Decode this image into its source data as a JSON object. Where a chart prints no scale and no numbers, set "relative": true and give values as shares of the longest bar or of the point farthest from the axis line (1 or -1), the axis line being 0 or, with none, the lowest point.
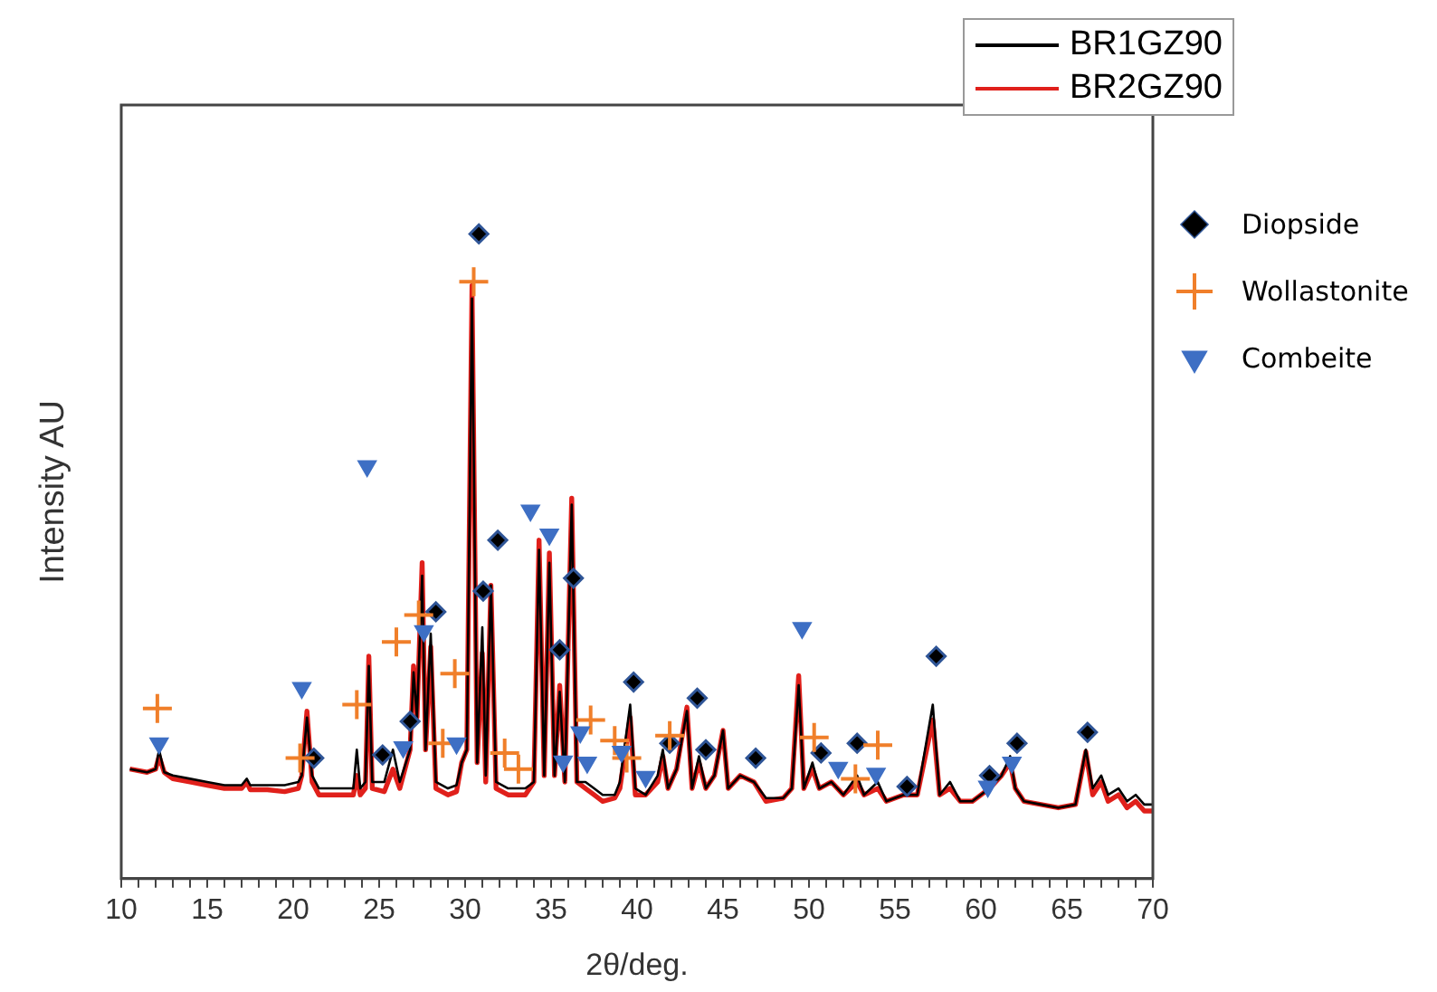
{
  "chart_data": {
    "type": "line",
    "xlabel": "2θ/deg.",
    "ylabel": "Intensity AU",
    "relative": true,
    "xlim": [
      10,
      70
    ],
    "xticks": [
      10,
      {
        "value": 11,
        "label": null
      },
      {
        "value": 12,
        "label": null
      },
      {
        "value": 13,
        "label": null
      },
      {
        "value": 14,
        "label": null
      },
      15,
      {
        "value": 16,
        "label": null
      },
      {
        "value": 17,
        "label": null
      },
      {
        "value": 18,
        "label": null
      },
      {
        "value": 19,
        "label": null
      },
      20,
      {
        "value": 21,
        "label": null
      },
      {
        "value": 22,
        "label": null
      },
      {
        "value": 23,
        "label": null
      },
      {
        "value": 24,
        "label": null
      },
      25,
      {
        "value": 26,
        "label": null
      },
      {
        "value": 27,
        "label": null
      },
      {
        "value": 28,
        "label": null
      },
      {
        "value": 29,
        "label": null
      },
      30,
      {
        "value": 31,
        "label": null
      },
      {
        "value": 32,
        "label": null
      },
      {
        "value": 33,
        "label": null
      },
      {
        "value": 34,
        "label": null
      },
      35,
      {
        "value": 36,
        "label": null
      },
      {
        "value": 37,
        "label": null
      },
      {
        "value": 38,
        "label": null
      },
      {
        "value": 39,
        "label": null
      },
      40,
      {
        "value": 41,
        "label": null
      },
      {
        "value": 42,
        "label": null
      },
      {
        "value": 43,
        "label": null
      },
      {
        "value": 44,
        "label": null
      },
      45,
      {
        "value": 46,
        "label": null
      },
      {
        "value": 47,
        "label": null
      },
      {
        "value": 48,
        "label": null
      },
      {
        "value": 49,
        "label": null
      },
      50,
      {
        "value": 51,
        "label": null
      },
      {
        "value": 52,
        "label": null
      },
      {
        "value": 53,
        "label": null
      },
      {
        "value": 54,
        "label": null
      },
      55,
      {
        "value": 56,
        "label": null
      },
      {
        "value": 57,
        "label": null
      },
      {
        "value": 58,
        "label": null
      },
      {
        "value": 59,
        "label": null
      },
      60,
      {
        "value": 61,
        "label": null
      },
      {
        "value": 62,
        "label": null
      },
      {
        "value": 63,
        "label": null
      },
      {
        "value": 64,
        "label": null
      },
      65,
      {
        "value": 66,
        "label": null
      },
      {
        "value": 67,
        "label": null
      },
      {
        "value": 68,
        "label": null
      },
      {
        "value": 69,
        "label": null
      },
      70
    ],
    "legend": "right",
    "marker": "none",
    "line_style": "solid",
    "x": [
      10.5,
      11.5,
      12.0,
      12.2,
      12.5,
      13,
      14,
      15,
      16,
      17,
      17.3,
      17.5,
      18.5,
      19.5,
      20.3,
      20.5,
      20.8,
      21.1,
      21.5,
      22.5,
      23.5,
      23.7,
      23.9,
      24.2,
      24.4,
      24.6,
      25.3,
      25.8,
      26.2,
      26.8,
      27.0,
      27.2,
      27.5,
      27.7,
      28.0,
      28.3,
      29.0,
      29.5,
      29.8,
      30.1,
      30.4,
      30.7,
      31.0,
      31.2,
      31.5,
      31.8,
      32.5,
      33.5,
      34.0,
      34.3,
      34.6,
      34.9,
      35.2,
      35.5,
      35.8,
      36.2,
      36.5,
      37.0,
      37.5,
      38,
      38.7,
      39.0,
      39.6,
      39.9,
      40.5,
      41.2,
      41.5,
      41.8,
      42.3,
      42.9,
      43.2,
      43.6,
      44.0,
      44.5,
      45.0,
      45.3,
      46,
      46.8,
      47.5,
      48.5,
      49.0,
      49.4,
      49.7,
      50.2,
      50.6,
      51.3,
      52,
      52.8,
      53.2,
      54.0,
      54.5,
      55.5,
      56.3,
      57.2,
      57.6,
      58.2,
      58.8,
      59.5,
      60.5,
      61.2,
      61.7,
      62.0,
      62.5,
      63.5,
      64.5,
      65.5,
      66.1,
      66.5,
      67,
      67.4,
      68,
      68.5,
      69,
      69.5,
      70
    ],
    "series": [
      {
        "name": "BR1GZ90",
        "color": "#000000",
        "values": [
          0.17,
          0.165,
          0.17,
          0.2,
          0.165,
          0.16,
          0.155,
          0.15,
          0.145,
          0.145,
          0.155,
          0.145,
          0.145,
          0.145,
          0.15,
          0.16,
          0.25,
          0.16,
          0.14,
          0.14,
          0.14,
          0.2,
          0.14,
          0.15,
          0.33,
          0.15,
          0.15,
          0.2,
          0.15,
          0.2,
          0.32,
          0.25,
          0.47,
          0.2,
          0.38,
          0.15,
          0.14,
          0.145,
          0.18,
          0.2,
          0.9,
          0.18,
          0.39,
          0.16,
          0.455,
          0.15,
          0.14,
          0.14,
          0.15,
          0.51,
          0.16,
          0.49,
          0.16,
          0.29,
          0.15,
          0.58,
          0.15,
          0.15,
          0.14,
          0.13,
          0.13,
          0.15,
          0.27,
          0.14,
          0.13,
          0.16,
          0.2,
          0.14,
          0.17,
          0.26,
          0.14,
          0.19,
          0.14,
          0.16,
          0.23,
          0.14,
          0.16,
          0.15,
          0.125,
          0.125,
          0.14,
          0.3,
          0.14,
          0.18,
          0.14,
          0.15,
          0.13,
          0.16,
          0.13,
          0.15,
          0.12,
          0.13,
          0.13,
          0.27,
          0.13,
          0.15,
          0.12,
          0.12,
          0.14,
          0.16,
          0.19,
          0.14,
          0.12,
          0.115,
          0.11,
          0.115,
          0.2,
          0.14,
          0.16,
          0.13,
          0.14,
          0.12,
          0.13,
          0.115,
          0.115
        ]
      },
      {
        "name": "BR2GZ90",
        "color": "#e0201b",
        "values": [
          0.17,
          0.165,
          0.17,
          0.19,
          0.165,
          0.155,
          0.15,
          0.145,
          0.14,
          0.14,
          0.15,
          0.138,
          0.138,
          0.135,
          0.14,
          0.16,
          0.26,
          0.15,
          0.13,
          0.13,
          0.13,
          0.16,
          0.13,
          0.14,
          0.345,
          0.14,
          0.135,
          0.17,
          0.14,
          0.2,
          0.33,
          0.25,
          0.49,
          0.2,
          0.36,
          0.14,
          0.13,
          0.135,
          0.18,
          0.2,
          0.92,
          0.18,
          0.35,
          0.15,
          0.455,
          0.14,
          0.13,
          0.13,
          0.15,
          0.525,
          0.16,
          0.505,
          0.16,
          0.3,
          0.15,
          0.59,
          0.15,
          0.14,
          0.13,
          0.12,
          0.125,
          0.14,
          0.25,
          0.13,
          0.13,
          0.15,
          0.19,
          0.14,
          0.17,
          0.266,
          0.14,
          0.18,
          0.14,
          0.16,
          0.23,
          0.14,
          0.16,
          0.15,
          0.12,
          0.125,
          0.14,
          0.315,
          0.14,
          0.17,
          0.14,
          0.15,
          0.13,
          0.15,
          0.13,
          0.14,
          0.12,
          0.13,
          0.13,
          0.246,
          0.13,
          0.14,
          0.12,
          0.12,
          0.14,
          0.16,
          0.18,
          0.14,
          0.12,
          0.115,
          0.11,
          0.115,
          0.197,
          0.13,
          0.15,
          0.12,
          0.13,
          0.11,
          0.12,
          0.105,
          0.105
        ]
      },
      {
        "name": "Diopside",
        "type": "scatter",
        "marker": "diamond",
        "color": "#000000",
        "x": [
          21.2,
          25.2,
          26.8,
          28.3,
          30.8,
          31.05,
          31.9,
          35.5,
          36.3,
          39.8,
          41.9,
          43.5,
          44.0,
          46.9,
          50.7,
          52.8,
          55.7,
          57.4,
          60.5,
          62.1,
          66.2
        ],
        "values": [
          0.187,
          0.192,
          0.244,
          0.414,
          1.0,
          0.446,
          0.525,
          0.355,
          0.466,
          0.305,
          0.21,
          0.28,
          0.2,
          0.187,
          0.195,
          0.21,
          0.143,
          0.345,
          0.16,
          0.21,
          0.227
        ]
      },
      {
        "name": "Wollastonite",
        "type": "scatter",
        "marker": "cross",
        "color": "#f07f2a",
        "x": [
          12.1,
          20.4,
          23.7,
          26.0,
          27.3,
          28.7,
          29.4,
          30.5,
          32.3,
          33.1,
          37.3,
          38.7,
          39.4,
          41.9,
          50.3,
          52.7,
          54.0
        ],
        "values": [
          0.264,
          0.187,
          0.27,
          0.367,
          0.409,
          0.21,
          0.318,
          0.926,
          0.195,
          0.17,
          0.246,
          0.214,
          0.187,
          0.222,
          0.219,
          0.155,
          0.207
        ]
      },
      {
        "name": "Combeite",
        "type": "scatter",
        "marker": "triangle",
        "color": "#3e6fc4",
        "x": [
          12.2,
          20.5,
          24.3,
          26.4,
          27.6,
          29.5,
          33.8,
          34.9,
          35.7,
          36.7,
          37.1,
          39.1,
          40.5,
          49.6,
          51.7,
          53.9,
          60.4,
          61.8
        ],
        "values": [
          0.21,
          0.296,
          0.64,
          0.204,
          0.384,
          0.21,
          0.571,
          0.534,
          0.182,
          0.227,
          0.18,
          0.197,
          0.158,
          0.389,
          0.172,
          0.163,
          0.143,
          0.18
        ]
      }
    ]
  }
}
